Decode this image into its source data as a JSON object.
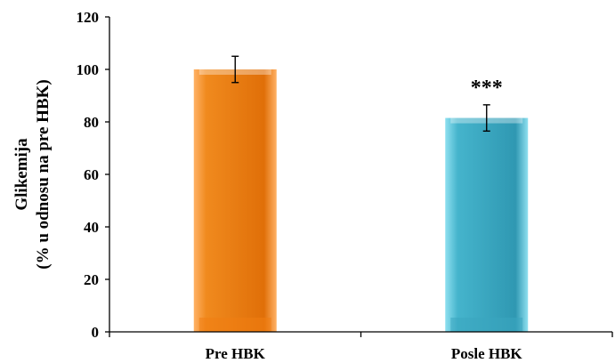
{
  "chart_data": {
    "type": "bar",
    "title": "",
    "xlabel": "",
    "ylabel": [
      "Glikemija",
      "(% u odnosu na pre HBK)"
    ],
    "categories": [
      "Pre HBK",
      "Posle HBK"
    ],
    "values": [
      100,
      81.5
    ],
    "errors": [
      5,
      5
    ],
    "annotations": [
      "",
      "***"
    ],
    "bar_colors": [
      "#F07E12",
      "#3BA6C0"
    ],
    "ylim": [
      0,
      120
    ],
    "yticks": [
      "0",
      "20",
      "40",
      "60",
      "80",
      "100",
      "120"
    ],
    "grid": false,
    "legend": "none"
  }
}
